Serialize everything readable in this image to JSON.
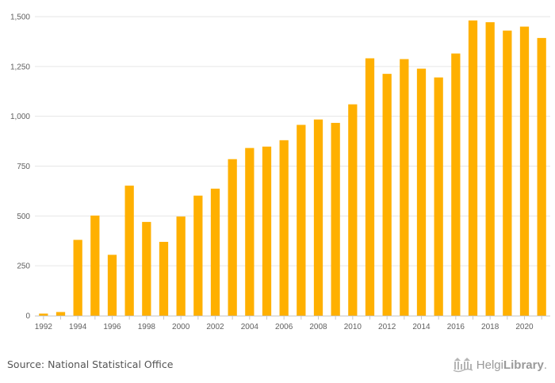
{
  "chart_data": {
    "type": "bar",
    "categories": [
      "1992",
      "1993",
      "1994",
      "1995",
      "1996",
      "1997",
      "1998",
      "1999",
      "2000",
      "2001",
      "2002",
      "2003",
      "2004",
      "2005",
      "2006",
      "2007",
      "2008",
      "2009",
      "2010",
      "2011",
      "2012",
      "2013",
      "2014",
      "2015",
      "2016",
      "2017",
      "2018",
      "2019",
      "2020",
      "2021"
    ],
    "values": [
      10,
      18,
      380,
      502,
      305,
      652,
      470,
      370,
      497,
      602,
      637,
      785,
      841,
      848,
      880,
      957,
      984,
      967,
      1060,
      1291,
      1213,
      1287,
      1239,
      1195,
      1315,
      1481,
      1472,
      1430,
      1450,
      1393
    ],
    "x_tick_labels": [
      "1992",
      "1994",
      "1996",
      "1998",
      "2000",
      "2002",
      "2004",
      "2006",
      "2008",
      "2010",
      "2012",
      "2014",
      "2016",
      "2018",
      "2020"
    ],
    "y_ticks": [
      0,
      250,
      500,
      750,
      1000,
      1250,
      1500
    ],
    "y_tick_labels": [
      "0",
      "250",
      "500",
      "750",
      "1,000",
      "1,250",
      "1,500"
    ],
    "ylim": [
      0,
      1500
    ],
    "title": "",
    "xlabel": "",
    "ylabel": "",
    "grid": true,
    "bar_color": "#ffb000"
  },
  "footer": {
    "source": "Source: National Statistical Office",
    "brand_name_1": "Helgi",
    "brand_name_2": "Library",
    "brand_dot": ".",
    "brand_icon": "library-building-icon"
  }
}
